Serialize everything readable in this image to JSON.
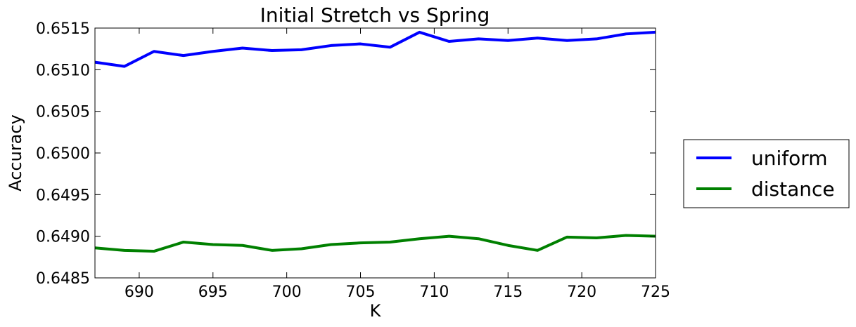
{
  "chart_data": {
    "type": "line",
    "title": "Initial Stretch vs Spring",
    "xlabel": "K",
    "ylabel": "Accuracy",
    "xlim": [
      687,
      725
    ],
    "ylim": [
      0.6485,
      0.6515
    ],
    "xticks": [
      690,
      695,
      700,
      705,
      710,
      715,
      720,
      725
    ],
    "xtick_labels": [
      "690",
      "695",
      "700",
      "705",
      "710",
      "715",
      "720",
      "725"
    ],
    "yticks": [
      0.6485,
      0.649,
      0.6495,
      0.65,
      0.6505,
      0.651,
      0.6515
    ],
    "ytick_labels": [
      "0.6485",
      "0.6490",
      "0.6495",
      "0.6500",
      "0.6505",
      "0.6510",
      "0.6515"
    ],
    "grid": false,
    "legend_position": "outside-right",
    "x": [
      687,
      689,
      691,
      693,
      695,
      697,
      699,
      701,
      703,
      705,
      707,
      709,
      711,
      713,
      715,
      717,
      719,
      721,
      723,
      725
    ],
    "series": [
      {
        "name": "uniform",
        "color": "#0000ff",
        "values": [
          0.65109,
          0.65104,
          0.65122,
          0.65117,
          0.65122,
          0.65126,
          0.65123,
          0.65124,
          0.65129,
          0.65131,
          0.65127,
          0.65145,
          0.65134,
          0.65137,
          0.65135,
          0.65138,
          0.65135,
          0.65137,
          0.65143,
          0.65145
        ]
      },
      {
        "name": "distance",
        "color": "#008000",
        "values": [
          0.64886,
          0.64883,
          0.64882,
          0.64893,
          0.6489,
          0.64889,
          0.64883,
          0.64885,
          0.6489,
          0.64892,
          0.64893,
          0.64897,
          0.649,
          0.64897,
          0.64889,
          0.64883,
          0.64899,
          0.64898,
          0.64901,
          0.649
        ]
      }
    ]
  }
}
